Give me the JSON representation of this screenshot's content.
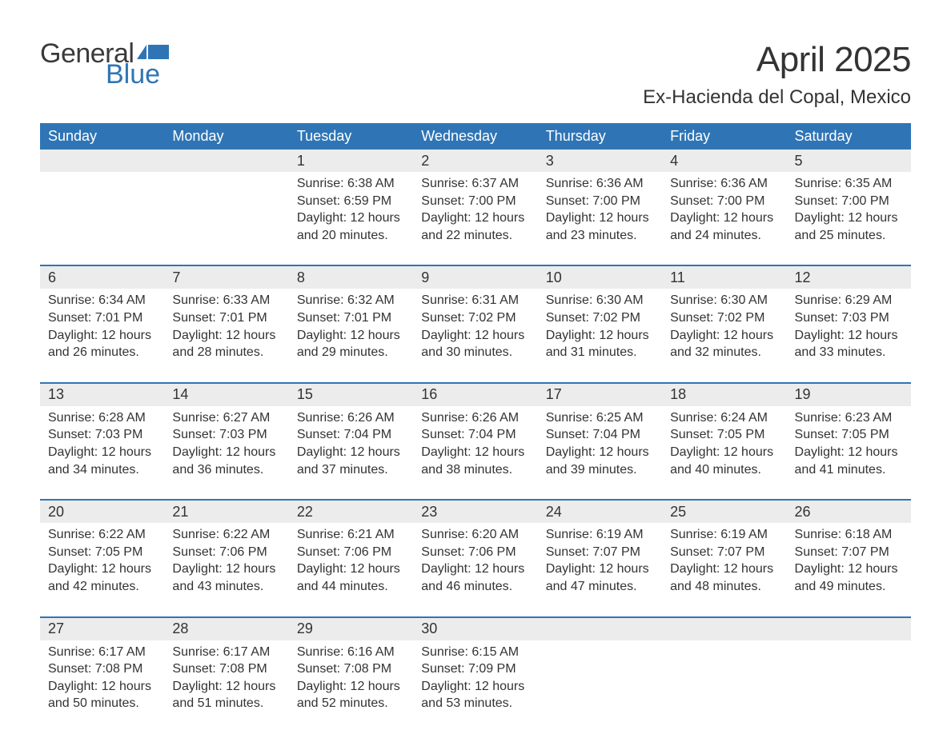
{
  "logo": {
    "word1": "General",
    "word2": "Blue",
    "flag_color": "#2f75b5"
  },
  "title": "April 2025",
  "location": "Ex-Hacienda del Copal, Mexico",
  "colors": {
    "header_bg": "#2f75b5",
    "header_text": "#ffffff",
    "daynum_bg": "#ececec",
    "body_text": "#333333",
    "page_bg": "#ffffff"
  },
  "typography": {
    "title_fontsize": 44,
    "location_fontsize": 24,
    "dayheader_fontsize": 18,
    "daynum_fontsize": 18,
    "cell_fontsize": 16
  },
  "day_headers": [
    "Sunday",
    "Monday",
    "Tuesday",
    "Wednesday",
    "Thursday",
    "Friday",
    "Saturday"
  ],
  "weeks": [
    [
      {
        "num": "",
        "lines": [
          "",
          "",
          "",
          ""
        ]
      },
      {
        "num": "",
        "lines": [
          "",
          "",
          "",
          ""
        ]
      },
      {
        "num": "1",
        "lines": [
          "Sunrise: 6:38 AM",
          "Sunset: 6:59 PM",
          "Daylight: 12 hours",
          "and 20 minutes."
        ]
      },
      {
        "num": "2",
        "lines": [
          "Sunrise: 6:37 AM",
          "Sunset: 7:00 PM",
          "Daylight: 12 hours",
          "and 22 minutes."
        ]
      },
      {
        "num": "3",
        "lines": [
          "Sunrise: 6:36 AM",
          "Sunset: 7:00 PM",
          "Daylight: 12 hours",
          "and 23 minutes."
        ]
      },
      {
        "num": "4",
        "lines": [
          "Sunrise: 6:36 AM",
          "Sunset: 7:00 PM",
          "Daylight: 12 hours",
          "and 24 minutes."
        ]
      },
      {
        "num": "5",
        "lines": [
          "Sunrise: 6:35 AM",
          "Sunset: 7:00 PM",
          "Daylight: 12 hours",
          "and 25 minutes."
        ]
      }
    ],
    [
      {
        "num": "6",
        "lines": [
          "Sunrise: 6:34 AM",
          "Sunset: 7:01 PM",
          "Daylight: 12 hours",
          "and 26 minutes."
        ]
      },
      {
        "num": "7",
        "lines": [
          "Sunrise: 6:33 AM",
          "Sunset: 7:01 PM",
          "Daylight: 12 hours",
          "and 28 minutes."
        ]
      },
      {
        "num": "8",
        "lines": [
          "Sunrise: 6:32 AM",
          "Sunset: 7:01 PM",
          "Daylight: 12 hours",
          "and 29 minutes."
        ]
      },
      {
        "num": "9",
        "lines": [
          "Sunrise: 6:31 AM",
          "Sunset: 7:02 PM",
          "Daylight: 12 hours",
          "and 30 minutes."
        ]
      },
      {
        "num": "10",
        "lines": [
          "Sunrise: 6:30 AM",
          "Sunset: 7:02 PM",
          "Daylight: 12 hours",
          "and 31 minutes."
        ]
      },
      {
        "num": "11",
        "lines": [
          "Sunrise: 6:30 AM",
          "Sunset: 7:02 PM",
          "Daylight: 12 hours",
          "and 32 minutes."
        ]
      },
      {
        "num": "12",
        "lines": [
          "Sunrise: 6:29 AM",
          "Sunset: 7:03 PM",
          "Daylight: 12 hours",
          "and 33 minutes."
        ]
      }
    ],
    [
      {
        "num": "13",
        "lines": [
          "Sunrise: 6:28 AM",
          "Sunset: 7:03 PM",
          "Daylight: 12 hours",
          "and 34 minutes."
        ]
      },
      {
        "num": "14",
        "lines": [
          "Sunrise: 6:27 AM",
          "Sunset: 7:03 PM",
          "Daylight: 12 hours",
          "and 36 minutes."
        ]
      },
      {
        "num": "15",
        "lines": [
          "Sunrise: 6:26 AM",
          "Sunset: 7:04 PM",
          "Daylight: 12 hours",
          "and 37 minutes."
        ]
      },
      {
        "num": "16",
        "lines": [
          "Sunrise: 6:26 AM",
          "Sunset: 7:04 PM",
          "Daylight: 12 hours",
          "and 38 minutes."
        ]
      },
      {
        "num": "17",
        "lines": [
          "Sunrise: 6:25 AM",
          "Sunset: 7:04 PM",
          "Daylight: 12 hours",
          "and 39 minutes."
        ]
      },
      {
        "num": "18",
        "lines": [
          "Sunrise: 6:24 AM",
          "Sunset: 7:05 PM",
          "Daylight: 12 hours",
          "and 40 minutes."
        ]
      },
      {
        "num": "19",
        "lines": [
          "Sunrise: 6:23 AM",
          "Sunset: 7:05 PM",
          "Daylight: 12 hours",
          "and 41 minutes."
        ]
      }
    ],
    [
      {
        "num": "20",
        "lines": [
          "Sunrise: 6:22 AM",
          "Sunset: 7:05 PM",
          "Daylight: 12 hours",
          "and 42 minutes."
        ]
      },
      {
        "num": "21",
        "lines": [
          "Sunrise: 6:22 AM",
          "Sunset: 7:06 PM",
          "Daylight: 12 hours",
          "and 43 minutes."
        ]
      },
      {
        "num": "22",
        "lines": [
          "Sunrise: 6:21 AM",
          "Sunset: 7:06 PM",
          "Daylight: 12 hours",
          "and 44 minutes."
        ]
      },
      {
        "num": "23",
        "lines": [
          "Sunrise: 6:20 AM",
          "Sunset: 7:06 PM",
          "Daylight: 12 hours",
          "and 46 minutes."
        ]
      },
      {
        "num": "24",
        "lines": [
          "Sunrise: 6:19 AM",
          "Sunset: 7:07 PM",
          "Daylight: 12 hours",
          "and 47 minutes."
        ]
      },
      {
        "num": "25",
        "lines": [
          "Sunrise: 6:19 AM",
          "Sunset: 7:07 PM",
          "Daylight: 12 hours",
          "and 48 minutes."
        ]
      },
      {
        "num": "26",
        "lines": [
          "Sunrise: 6:18 AM",
          "Sunset: 7:07 PM",
          "Daylight: 12 hours",
          "and 49 minutes."
        ]
      }
    ],
    [
      {
        "num": "27",
        "lines": [
          "Sunrise: 6:17 AM",
          "Sunset: 7:08 PM",
          "Daylight: 12 hours",
          "and 50 minutes."
        ]
      },
      {
        "num": "28",
        "lines": [
          "Sunrise: 6:17 AM",
          "Sunset: 7:08 PM",
          "Daylight: 12 hours",
          "and 51 minutes."
        ]
      },
      {
        "num": "29",
        "lines": [
          "Sunrise: 6:16 AM",
          "Sunset: 7:08 PM",
          "Daylight: 12 hours",
          "and 52 minutes."
        ]
      },
      {
        "num": "30",
        "lines": [
          "Sunrise: 6:15 AM",
          "Sunset: 7:09 PM",
          "Daylight: 12 hours",
          "and 53 minutes."
        ]
      },
      {
        "num": "",
        "lines": [
          "",
          "",
          "",
          ""
        ]
      },
      {
        "num": "",
        "lines": [
          "",
          "",
          "",
          ""
        ]
      },
      {
        "num": "",
        "lines": [
          "",
          "",
          "",
          ""
        ]
      }
    ]
  ]
}
